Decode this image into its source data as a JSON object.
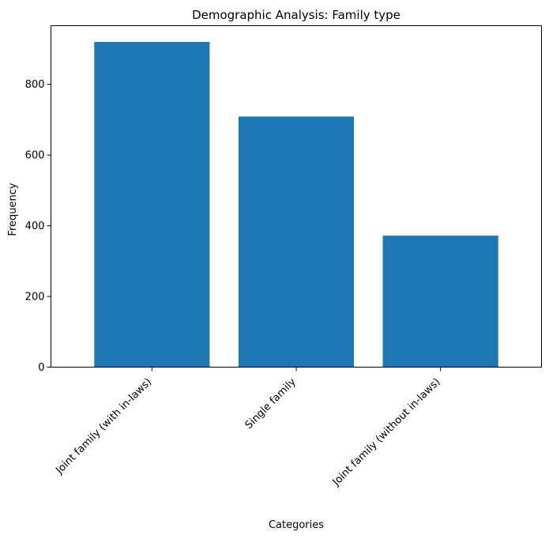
{
  "chart_data": {
    "type": "bar",
    "title": "Demographic Analysis: Family type",
    "xlabel": "Categories",
    "ylabel": "Frequency",
    "categories": [
      "Joint family (with in-laws)",
      "Single family",
      "Joint family (without in-laws)"
    ],
    "values": [
      920,
      709,
      372
    ],
    "ylim": [
      0,
      966
    ],
    "yticks": [
      0,
      200,
      400,
      600,
      800
    ],
    "xtick_rotation_deg": 45,
    "grid": false,
    "legend": "none",
    "colors": {
      "bar": "#1f77b4",
      "axis": "#000000",
      "background": "#ffffff"
    }
  }
}
